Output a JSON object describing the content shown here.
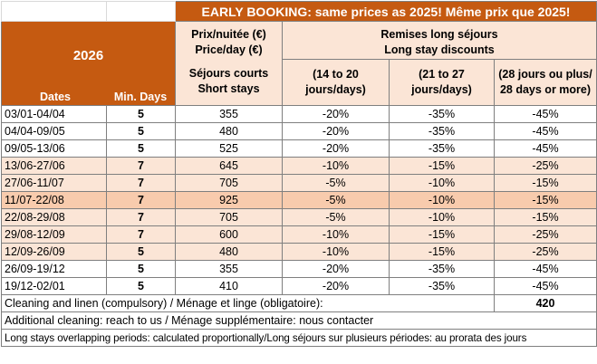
{
  "banner": "EARLY BOOKING: same prices as 2025! Même prix que 2025!",
  "header": {
    "year": "2026",
    "dates_label": "Dates",
    "min_days_label": "Min. Days",
    "price_label_fr": "Prix/nuitée (€)",
    "price_label_en": "Price/day (€)",
    "short_stays_fr": "Séjours courts",
    "short_stays_en": "Short stays",
    "discounts_fr": "Remises long séjours",
    "discounts_en": "Long stay discounts",
    "disc1_a": "(14 to 20",
    "disc1_b": "jours/days)",
    "disc2_a": "(21 to 27",
    "disc2_b": "jours/days)",
    "disc3_a": "(28 jours ou plus/",
    "disc3_b": "28 days or more)"
  },
  "rows": [
    {
      "dates": "03/01-04/04",
      "min_days": "5",
      "price": "355",
      "d1": "-20%",
      "d2": "-35%",
      "d3": "-45%",
      "tier": "low"
    },
    {
      "dates": "04/04-09/05",
      "min_days": "5",
      "price": "480",
      "d1": "-20%",
      "d2": "-35%",
      "d3": "-45%",
      "tier": "low"
    },
    {
      "dates": "09/05-13/06",
      "min_days": "5",
      "price": "525",
      "d1": "-20%",
      "d2": "-35%",
      "d3": "-45%",
      "tier": "low"
    },
    {
      "dates": "13/06-27/06",
      "min_days": "7",
      "price": "645",
      "d1": "-10%",
      "d2": "-15%",
      "d3": "-25%",
      "tier": "mid"
    },
    {
      "dates": "27/06-11/07",
      "min_days": "7",
      "price": "705",
      "d1": "-5%",
      "d2": "-10%",
      "d3": "-15%",
      "tier": "mid"
    },
    {
      "dates": "11/07-22/08",
      "min_days": "7",
      "price": "925",
      "d1": "-5%",
      "d2": "-10%",
      "d3": "-15%",
      "tier": "high"
    },
    {
      "dates": "22/08-29/08",
      "min_days": "7",
      "price": "705",
      "d1": "-5%",
      "d2": "-10%",
      "d3": "-15%",
      "tier": "mid"
    },
    {
      "dates": "29/08-12/09",
      "min_days": "7",
      "price": "600",
      "d1": "-10%",
      "d2": "-15%",
      "d3": "-25%",
      "tier": "mid"
    },
    {
      "dates": "12/09-26/09",
      "min_days": "5",
      "price": "480",
      "d1": "-10%",
      "d2": "-15%",
      "d3": "-25%",
      "tier": "mid"
    },
    {
      "dates": "26/09-19/12",
      "min_days": "5",
      "price": "355",
      "d1": "-20%",
      "d2": "-35%",
      "d3": "-45%",
      "tier": "low"
    },
    {
      "dates": "19/12-02/01",
      "min_days": "5",
      "price": "410",
      "d1": "-20%",
      "d2": "-35%",
      "d3": "-45%",
      "tier": "low"
    }
  ],
  "footer": {
    "cleaning_label": "Cleaning and linen (compulsory) / Ménage et linge (obligatoire):",
    "cleaning_price": "420",
    "additional_cleaning": "Additional cleaning: reach to us / Ménage supplémentaire: nous contacter",
    "overlap_note": "Long stays overlapping periods: calculated proportionally/Long séjours sur plusieurs périodes: au prorata des jours"
  },
  "colors": {
    "accent": "#c55a11",
    "tier_low": "#ffffff",
    "tier_mid": "#fbe5d6",
    "tier_high": "#f8cbad"
  }
}
